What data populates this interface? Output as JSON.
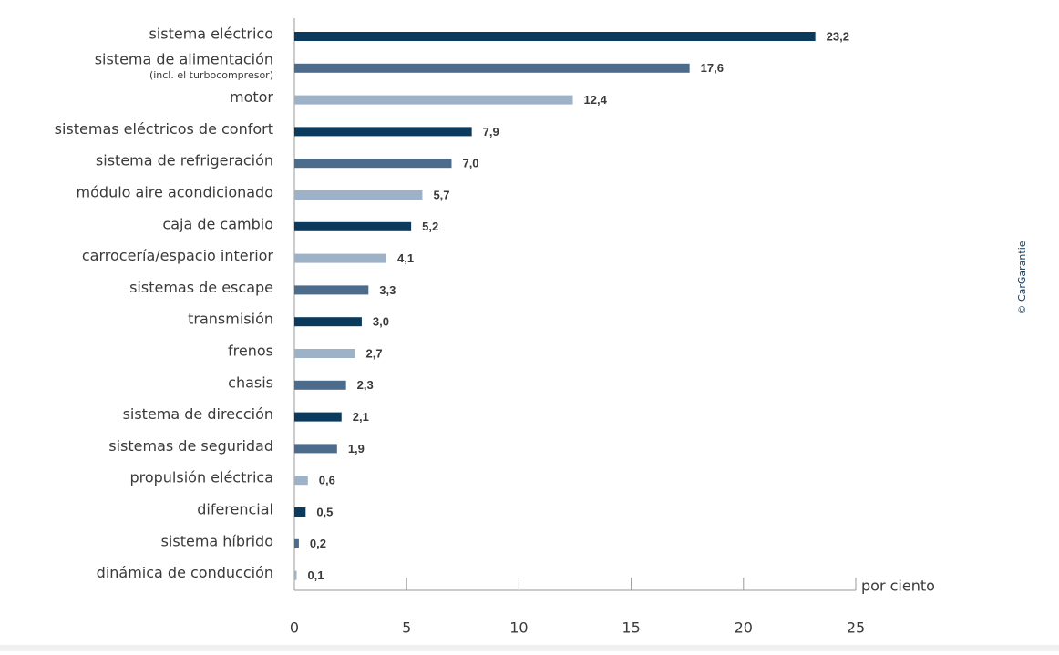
{
  "chart_data": {
    "type": "bar",
    "orientation": "horizontal",
    "categories": [
      "sistema eléctrico",
      {
        "label": "sistema de alimentación",
        "note": "(incl. el turbocompresor)"
      },
      "motor",
      "sistemas eléctricos de confort",
      "sistema de refrigeración",
      "módulo aire acondicionado",
      "caja de cambio",
      "carrocería/espacio interior",
      "sistemas de escape",
      "transmisión",
      "frenos",
      "chasis",
      "sistema de dirección",
      "sistemas de seguridad",
      "propulsión eléctrica",
      "diferencial",
      "sistema híbrido",
      "dinámica de conducción"
    ],
    "values": [
      23.2,
      17.6,
      12.4,
      7.9,
      7.0,
      5.7,
      5.2,
      4.1,
      3.3,
      3.0,
      2.7,
      2.3,
      2.1,
      1.9,
      0.6,
      0.5,
      0.2,
      0.1
    ],
    "value_labels": [
      "23,2",
      "17,6",
      "12,4",
      "7,9",
      "7,0",
      "5,7",
      "5,2",
      "4,1",
      "3,3",
      "3,0",
      "2,7",
      "2,3",
      "2,1",
      "1,9",
      "0,6",
      "0,5",
      "0,2",
      "0,1"
    ],
    "colors": [
      "#0b3a5d",
      "#4d6c8c",
      "#9db1c7",
      "#0b3a5d",
      "#4d6c8c",
      "#9db1c7",
      "#0b3a5d",
      "#9db1c7",
      "#4d6c8c",
      "#0b3a5d",
      "#9db1c7",
      "#4d6c8c",
      "#0b3a5d",
      "#4d6c8c",
      "#9db1c7",
      "#0b3a5d",
      "#4d6c8c",
      "#9db1c7"
    ],
    "xlim": [
      0,
      25
    ],
    "xticks": [
      0,
      5,
      10,
      15,
      20,
      25
    ],
    "x_label": "por ciento",
    "credit": "© CarGarantie"
  }
}
